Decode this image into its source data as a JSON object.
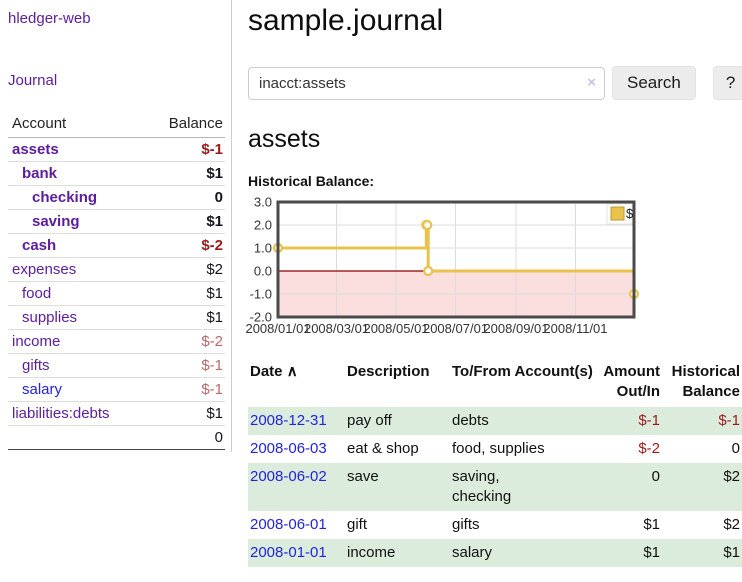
{
  "app": {
    "title": "hledger-web",
    "nav_journal": "Journal"
  },
  "sidebar": {
    "headers": {
      "account": "Account",
      "balance": "Balance"
    },
    "accounts": [
      {
        "name": "assets",
        "indent": 0,
        "bold": true,
        "link": "purple",
        "balance": "$-1",
        "bal_color": "darkred",
        "bal_bold": true
      },
      {
        "name": "bank",
        "indent": 1,
        "bold": true,
        "link": "purple",
        "balance": "$1",
        "bal_color": "black",
        "bal_bold": true
      },
      {
        "name": "checking",
        "indent": 2,
        "bold": true,
        "link": "purple",
        "balance": "0",
        "bal_color": "black",
        "bal_bold": true
      },
      {
        "name": "saving",
        "indent": 2,
        "bold": true,
        "link": "purple",
        "balance": "$1",
        "bal_color": "black",
        "bal_bold": true
      },
      {
        "name": "cash",
        "indent": 1,
        "bold": true,
        "link": "purple",
        "balance": "$-2",
        "bal_color": "darkred",
        "bal_bold": true
      },
      {
        "name": "expenses",
        "indent": 0,
        "bold": false,
        "link": "purple",
        "balance": "$2",
        "bal_color": "black",
        "bal_bold": false
      },
      {
        "name": "food",
        "indent": 1,
        "bold": false,
        "link": "purple",
        "balance": "$1",
        "bal_color": "black",
        "bal_bold": false
      },
      {
        "name": "supplies",
        "indent": 1,
        "bold": false,
        "link": "purple",
        "balance": "$1",
        "bal_color": "black",
        "bal_bold": false
      },
      {
        "name": "income",
        "indent": 0,
        "bold": false,
        "link": "purple",
        "balance": "$-2",
        "bal_color": "rose",
        "bal_bold": false
      },
      {
        "name": "gifts",
        "indent": 1,
        "bold": false,
        "link": "purple",
        "balance": "$-1",
        "bal_color": "rose",
        "bal_bold": false
      },
      {
        "name": "salary",
        "indent": 1,
        "bold": false,
        "link": "blue",
        "balance": "$-1",
        "bal_color": "rose",
        "bal_bold": false
      },
      {
        "name": "liabilities:debts",
        "indent": 0,
        "bold": false,
        "link": "purple",
        "balance": "$1",
        "bal_color": "black",
        "bal_bold": false
      }
    ],
    "total": "0"
  },
  "header": {
    "title": "sample.journal"
  },
  "search": {
    "value": "inacct:assets",
    "clear_icon": "×",
    "button": "Search",
    "help_button": "?"
  },
  "account_page": {
    "title": "assets",
    "chart_label": "Historical Balance:"
  },
  "chart_data": {
    "type": "line",
    "title": "Historical Balance",
    "step": true,
    "series": [
      {
        "name": "$",
        "points": [
          [
            "2008-01-01",
            1
          ],
          [
            "2008-06-01",
            2
          ],
          [
            "2008-06-02",
            2
          ],
          [
            "2008-06-03",
            0
          ],
          [
            "2008-12-31",
            -1
          ]
        ]
      }
    ],
    "x_start": "2008-01-01",
    "x_days": 365,
    "x_tick_days": [
      0,
      60,
      121,
      182,
      244,
      305
    ],
    "x_tick_labels": [
      "2008/01/01",
      "2008/03/01",
      "2008/05/01",
      "2008/07/01",
      "2008/09/01",
      "2008/11/01"
    ],
    "y_ticks": [
      "3.0",
      "2.0",
      "1.0",
      "0.0",
      "-1.0",
      "-2.0"
    ],
    "ylim": [
      -2,
      3
    ],
    "grid": true,
    "legend": {
      "label": "$",
      "position": "top-right"
    },
    "colors": {
      "line": "#e8c34e",
      "marker_fill": "#ffffff",
      "legend_square": "#e8c34e",
      "legend_border": "#bf9b2f",
      "negative_region": "#fbdede",
      "zero_line": "#8b0000",
      "gridline": "#dcdcdc",
      "border": "#4a4a4a",
      "tick_text": "#333333"
    }
  },
  "register": {
    "headers": {
      "date": "Date",
      "sort_indicator": "∧",
      "description": "Description",
      "account": "To/From Account(s)",
      "amount": "Amount Out/In",
      "balance": "Historical Balance"
    },
    "rows": [
      {
        "date": "2008-12-31",
        "description": "pay off",
        "account_lines": [
          "debts"
        ],
        "amount": "$-1",
        "amount_neg": true,
        "balance": "$-1",
        "balance_neg": true,
        "zebra": true
      },
      {
        "date": "2008-06-03",
        "description": "eat & shop",
        "account_lines": [
          "food, supplies"
        ],
        "amount": "$-2",
        "amount_neg": true,
        "balance": "0",
        "balance_neg": false,
        "zebra": false
      },
      {
        "date": "2008-06-02",
        "description": "save",
        "account_lines": [
          "saving,",
          "checking"
        ],
        "amount": "0",
        "amount_neg": false,
        "balance": "$2",
        "balance_neg": false,
        "zebra": true
      },
      {
        "date": "2008-06-01",
        "description": "gift",
        "account_lines": [
          "gifts"
        ],
        "amount": "$1",
        "amount_neg": false,
        "balance": "$2",
        "balance_neg": false,
        "zebra": false
      },
      {
        "date": "2008-01-01",
        "description": "income",
        "account_lines": [
          "salary"
        ],
        "amount": "$1",
        "amount_neg": false,
        "balance": "$1",
        "balance_neg": false,
        "zebra": true
      }
    ]
  }
}
